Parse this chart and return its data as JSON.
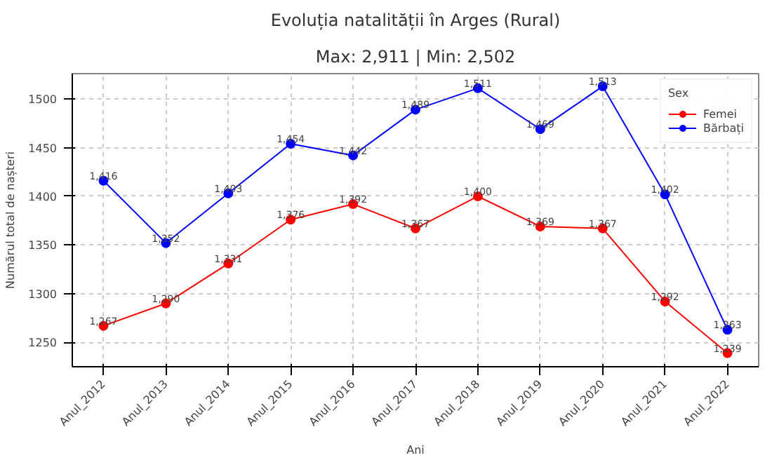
{
  "chart_data": {
    "type": "line",
    "title": "Evoluția natalității în Arges (Rural)",
    "subtitle": "Max: 2,911 | Min: 2,502",
    "xlabel": "Ani",
    "ylabel": "Numărul total de nașteri",
    "legend_title": "Sex",
    "categories": [
      "Anul_2012",
      "Anul_2013",
      "Anul_2014",
      "Anul_2015",
      "Anul_2016",
      "Anul_2017",
      "Anul_2018",
      "Anul_2019",
      "Anul_2020",
      "Anul_2021",
      "Anul_2022"
    ],
    "series": [
      {
        "name": "Femei",
        "color": "#ff0000",
        "values": [
          1267,
          1290,
          1331,
          1376,
          1392,
          1367,
          1400,
          1369,
          1367,
          1292,
          1239
        ],
        "value_labels": [
          "1,267",
          "1,290",
          "1,331",
          "1,376",
          "1,392",
          "1,367",
          "1,400",
          "1,369",
          "1,367",
          "1,292",
          "1,239"
        ]
      },
      {
        "name": "Bărbați",
        "color": "#0000ff",
        "values": [
          1416,
          1352,
          1403,
          1454,
          1442,
          1489,
          1511,
          1469,
          1513,
          1402,
          1263
        ],
        "value_labels": [
          "1,416",
          "1,352",
          "1,403",
          "1,454",
          "1,442",
          "1,489",
          "1,511",
          "1,469",
          "1,513",
          "1,402",
          "1,263"
        ]
      }
    ],
    "ylim": [
      1225,
      1526
    ],
    "yticks": [
      1250,
      1300,
      1350,
      1400,
      1450,
      1500
    ],
    "grid": true,
    "legend": "top right",
    "marker": "circle",
    "line_style": "solid"
  }
}
